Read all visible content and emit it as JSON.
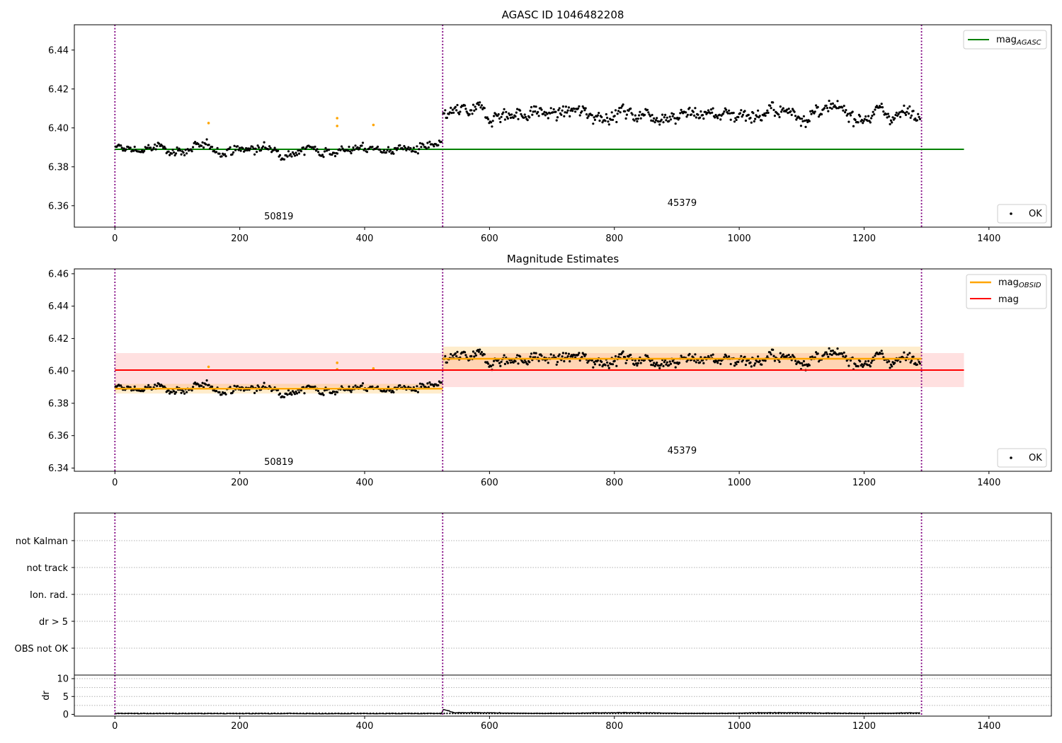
{
  "chart_data": [
    {
      "type": "scatter",
      "title": "AGASC ID 1046482208",
      "xlim": [
        -65,
        1500
      ],
      "ylim": [
        6.349,
        6.453
      ],
      "xticks": [
        0,
        200,
        400,
        600,
        800,
        1000,
        1200,
        1400
      ],
      "yticks": [
        6.36,
        6.38,
        6.4,
        6.42,
        6.44
      ],
      "ytick_labels": [
        "6.36",
        "6.38",
        "6.40",
        "6.42",
        "6.44"
      ],
      "vlines": [
        0,
        525,
        1292
      ],
      "segments": [
        {
          "label": "50819",
          "x_range": [
            0,
            525
          ],
          "mean": 6.389,
          "noise": 0.0045
        },
        {
          "label": "45379",
          "x_range": [
            525,
            1292
          ],
          "mean": 6.4075,
          "noise": 0.0065
        }
      ],
      "segment_label_y": [
        6.353,
        6.36
      ],
      "highlight_points": [
        [
          150,
          6.4025
        ],
        [
          356,
          6.405
        ],
        [
          356,
          6.401
        ],
        [
          414,
          6.4015
        ]
      ],
      "ref_line": {
        "name": "mag_AGASC",
        "value": 6.389,
        "x_range": [
          0,
          1360
        ],
        "color": "#008000"
      },
      "legend_upper": [
        {
          "label": "mag",
          "sub": "AGASC",
          "color": "#008000"
        }
      ],
      "legend_lower": [
        {
          "label": "OK"
        }
      ]
    },
    {
      "type": "scatter",
      "title": "Magnitude Estimates",
      "xlim": [
        -65,
        1500
      ],
      "ylim": [
        6.338,
        6.463
      ],
      "xticks": [
        0,
        200,
        400,
        600,
        800,
        1000,
        1200,
        1400
      ],
      "yticks": [
        6.34,
        6.36,
        6.38,
        6.4,
        6.42,
        6.44,
        6.46
      ],
      "ytick_labels": [
        "6.34",
        "6.36",
        "6.38",
        "6.40",
        "6.42",
        "6.44",
        "6.46"
      ],
      "vlines": [
        0,
        525,
        1292
      ],
      "segment_label_y": [
        6.342,
        6.349
      ],
      "mag_band": {
        "value": 6.4005,
        "lo": 6.39,
        "hi": 6.411,
        "x_range": [
          0,
          1360
        ],
        "color": "#ff0000"
      },
      "obsid_lines": [
        {
          "x_range": [
            0,
            525
          ],
          "value": 6.389,
          "lo": 6.386,
          "hi": 6.392
        },
        {
          "x_range": [
            525,
            1292
          ],
          "value": 6.4075,
          "lo": 6.4,
          "hi": 6.415
        }
      ],
      "legend_upper": [
        {
          "label": "mag",
          "sub": "OBSID",
          "color": "#ffa500"
        },
        {
          "label": "mag",
          "sub": "",
          "color": "#ff0000"
        }
      ],
      "legend_lower": [
        {
          "label": "OK"
        }
      ]
    },
    {
      "type": "flags",
      "categories": [
        "OBS not OK",
        "dr > 5",
        "Ion. rad.",
        "not track",
        "not Kalman"
      ],
      "vlines": [
        0,
        525,
        1292
      ]
    },
    {
      "type": "line",
      "ylabel": "dr",
      "ylim": [
        -0.5,
        11
      ],
      "yticks": [
        0,
        5,
        10
      ],
      "ytick_labels": [
        "0",
        "5",
        "10"
      ],
      "xticks": [
        0,
        200,
        400,
        600,
        800,
        1000,
        1200,
        1400
      ],
      "vlines": [
        0,
        525,
        1292
      ]
    }
  ]
}
